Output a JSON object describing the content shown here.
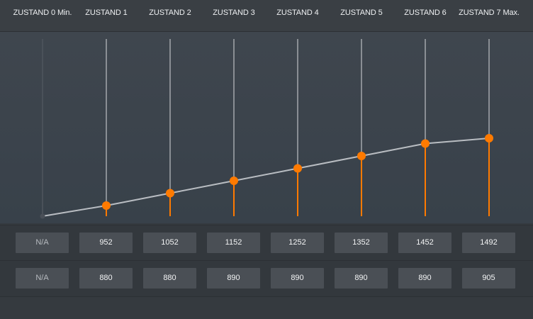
{
  "columns": [
    {
      "title": "ZUSTAND 0 Min.",
      "row1": "N/A",
      "row2": "N/A"
    },
    {
      "title": "ZUSTAND 1",
      "row1": "952",
      "row2": "880"
    },
    {
      "title": "ZUSTAND 2",
      "row1": "1052",
      "row2": "880"
    },
    {
      "title": "ZUSTAND 3",
      "row1": "1152",
      "row2": "890"
    },
    {
      "title": "ZUSTAND 4",
      "row1": "1252",
      "row2": "890"
    },
    {
      "title": "ZUSTAND 5",
      "row1": "1352",
      "row2": "890"
    },
    {
      "title": "ZUSTAND 6",
      "row1": "1452",
      "row2": "890"
    },
    {
      "title": "ZUSTAND 7 Max.",
      "row1": "1492",
      "row2": "905"
    }
  ],
  "chart_data": {
    "type": "line",
    "x": [
      "ZUSTAND 0 Min.",
      "ZUSTAND 1",
      "ZUSTAND 2",
      "ZUSTAND 3",
      "ZUSTAND 4",
      "ZUSTAND 5",
      "ZUSTAND 6",
      "ZUSTAND 7 Max."
    ],
    "series": [
      {
        "values": [
          0.0,
          0.06,
          0.13,
          0.2,
          0.27,
          0.34,
          0.41,
          0.44
        ]
      }
    ],
    "ylim": [
      0,
      1
    ]
  },
  "colors": {
    "accent": "#ff7a00",
    "line": "#b9bdc2",
    "track": "#a3a7ac"
  }
}
